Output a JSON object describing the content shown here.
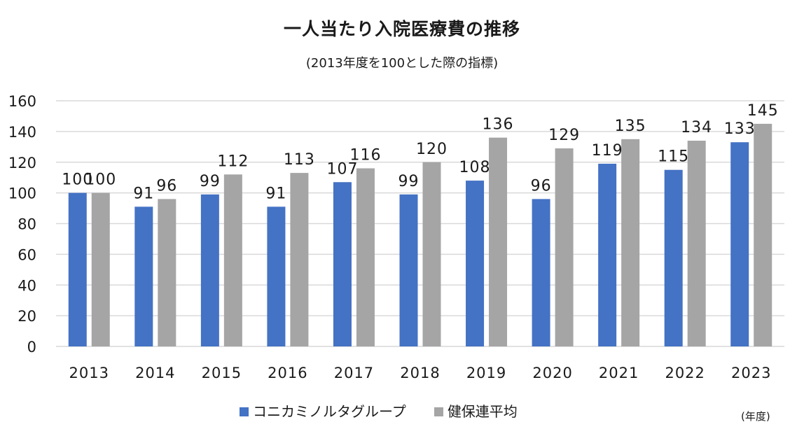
{
  "chart_data": {
    "type": "bar",
    "title": "一人当たり入院医療費の推移",
    "subtitle": "(2013年度を100とした際の指標)",
    "xlabel": "",
    "ylabel": "",
    "unit_label": "(年度)",
    "categories": [
      "2013",
      "2014",
      "2015",
      "2016",
      "2017",
      "2018",
      "2019",
      "2020",
      "2021",
      "2022",
      "2023"
    ],
    "series": [
      {
        "name": "コニカミノルタグループ",
        "color": "#4472c4",
        "values": [
          100,
          91,
          99,
          91,
          107,
          99,
          108,
          96,
          119,
          115,
          133
        ]
      },
      {
        "name": "健保連平均",
        "color": "#a5a5a5",
        "values": [
          100,
          96,
          112,
          113,
          116,
          120,
          136,
          129,
          135,
          134,
          145
        ]
      }
    ],
    "ylim": [
      0,
      160
    ],
    "yticks": [
      0,
      20,
      40,
      60,
      80,
      100,
      120,
      140,
      160
    ],
    "grid": true,
    "data_labels": true,
    "legend_position": "bottom"
  }
}
